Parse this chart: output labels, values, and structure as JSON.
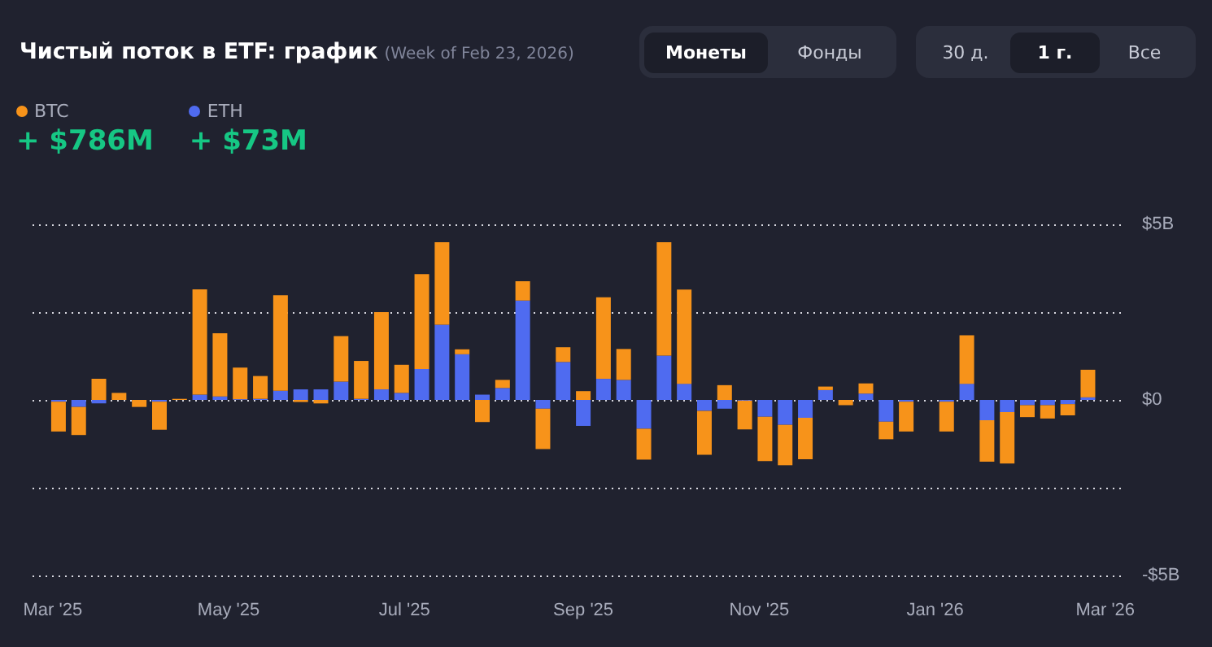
{
  "chart_data": {
    "type": "bar",
    "title": "Чистый поток в ETF: график",
    "subtitle": "(Week of Feb 23, 2026)",
    "stacked": true,
    "legend": "top left",
    "grid": "y",
    "tick_labels": "xy",
    "x": [
      "2025-03-03",
      "2025-03-10",
      "2025-03-17",
      "2025-03-24",
      "2025-03-31",
      "2025-04-07",
      "2025-04-14",
      "2025-04-21",
      "2025-04-28",
      "2025-05-05",
      "2025-05-12",
      "2025-05-19",
      "2025-05-26",
      "2025-06-02",
      "2025-06-09",
      "2025-06-16",
      "2025-06-23",
      "2025-06-30",
      "2025-07-07",
      "2025-07-14",
      "2025-07-21",
      "2025-07-28",
      "2025-08-04",
      "2025-08-11",
      "2025-08-18",
      "2025-08-25",
      "2025-09-01",
      "2025-09-08",
      "2025-09-15",
      "2025-09-22",
      "2025-09-29",
      "2025-10-06",
      "2025-10-13",
      "2025-10-20",
      "2025-10-27",
      "2025-11-03",
      "2025-11-10",
      "2025-11-17",
      "2025-11-24",
      "2025-12-01",
      "2025-12-08",
      "2025-12-15",
      "2025-12-22",
      "2025-12-29",
      "2026-01-05",
      "2026-01-12",
      "2026-01-19",
      "2026-01-26",
      "2026-02-02",
      "2026-02-09",
      "2026-02-16",
      "2026-02-23"
    ],
    "series": [
      {
        "name": "ETH",
        "color": "#4f6bf0",
        "values": [
          -0.05,
          -0.2,
          -0.1,
          0,
          0,
          -0.05,
          0,
          0.15,
          0.1,
          0.02,
          0.03,
          0.26,
          0.3,
          0.3,
          0.52,
          0.03,
          0.3,
          0.2,
          0.88,
          2.14,
          1.3,
          0.15,
          0.34,
          2.83,
          -0.25,
          1.08,
          -0.74,
          0.6,
          0.57,
          -0.82,
          1.26,
          0.46,
          -0.31,
          -0.25,
          -0.02,
          -0.48,
          -0.71,
          -0.51,
          0.28,
          0,
          0.18,
          -0.62,
          -0.05,
          null,
          -0.05,
          0.46,
          -0.58,
          -0.35,
          -0.15,
          -0.15,
          -0.12,
          0.073
        ]
      },
      {
        "name": "BTC",
        "color": "#f7931a",
        "values": [
          -0.85,
          -0.8,
          0.6,
          0.2,
          -0.2,
          -0.8,
          0.03,
          3.0,
          1.8,
          0.9,
          0.65,
          2.72,
          -0.06,
          -0.1,
          1.3,
          1.08,
          2.2,
          0.8,
          2.7,
          2.35,
          0.14,
          -0.63,
          0.23,
          0.55,
          -1.15,
          0.42,
          0.25,
          2.32,
          0.88,
          -0.88,
          3.23,
          2.68,
          -1.25,
          0.42,
          -0.82,
          -1.26,
          -1.15,
          -1.18,
          0.1,
          -0.15,
          0.29,
          -0.5,
          -0.85,
          null,
          -0.85,
          1.38,
          -1.18,
          -1.46,
          -0.34,
          -0.38,
          -0.32,
          0.786
        ]
      }
    ],
    "xlim": [
      "2025-02-22",
      "2026-03-07"
    ],
    "xticks": [
      {
        "value": "2025-03-01",
        "label": "Mar '25"
      },
      {
        "value": "2025-05-01",
        "label": "May '25"
      },
      {
        "value": "2025-07-01",
        "label": "Jul '25"
      },
      {
        "value": "2025-09-01",
        "label": "Sep '25"
      },
      {
        "value": "2025-11-01",
        "label": "Nov '25"
      },
      {
        "value": "2026-01-01",
        "label": "Jan '26"
      },
      {
        "value": "2026-03-01",
        "label": "Mar '26"
      }
    ],
    "ylim": [
      -5,
      5
    ],
    "yticks": [
      {
        "value": -5,
        "label": "-$5B"
      },
      {
        "value": -2.5,
        "label": null
      },
      {
        "value": 0,
        "label": "$0"
      },
      {
        "value": 2.5,
        "label": null
      },
      {
        "value": 5,
        "label": "$5B"
      }
    ],
    "annotations": [
      "Монеты",
      "Фонды",
      "30 д.",
      "1 г.",
      "Все",
      "+ $73M",
      "+ $786M"
    ]
  }
}
